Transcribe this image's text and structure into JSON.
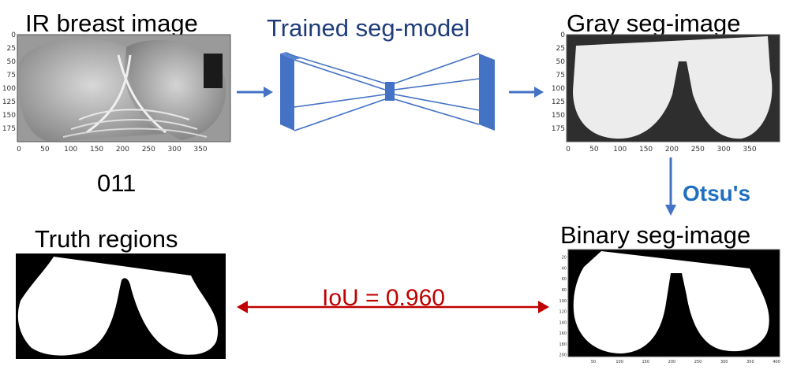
{
  "titles": {
    "ir_image": "IR breast image",
    "model": "Trained seg-model",
    "gray": "Gray seg-image",
    "binary": "Binary seg-image",
    "truth": "Truth regions"
  },
  "sample_id": "011",
  "labels": {
    "otsu": "Otsu's",
    "iou": "IoU = 0.960"
  },
  "ir_plot": {
    "y_ticks": [
      "0",
      "25",
      "50",
      "75",
      "100",
      "125",
      "150",
      "175"
    ],
    "x_ticks": [
      "0",
      "50",
      "100",
      "150",
      "200",
      "250",
      "300",
      "350"
    ]
  },
  "gray_plot": {
    "y_ticks": [
      "0",
      "25",
      "50",
      "75",
      "100",
      "125",
      "150",
      "175"
    ],
    "x_ticks": [
      "0",
      "50",
      "100",
      "150",
      "200",
      "250",
      "300",
      "350"
    ]
  },
  "binary_plot": {
    "y_ticks": [
      "20",
      "40",
      "60",
      "80",
      "100",
      "120",
      "140",
      "160",
      "180",
      "200"
    ],
    "x_ticks": [
      "50",
      "100",
      "150",
      "200",
      "250",
      "300",
      "350",
      "400"
    ]
  },
  "colors": {
    "arrow_blue": "#4472c4",
    "model_blue": "#4472c4",
    "iou_red": "#c00000"
  }
}
